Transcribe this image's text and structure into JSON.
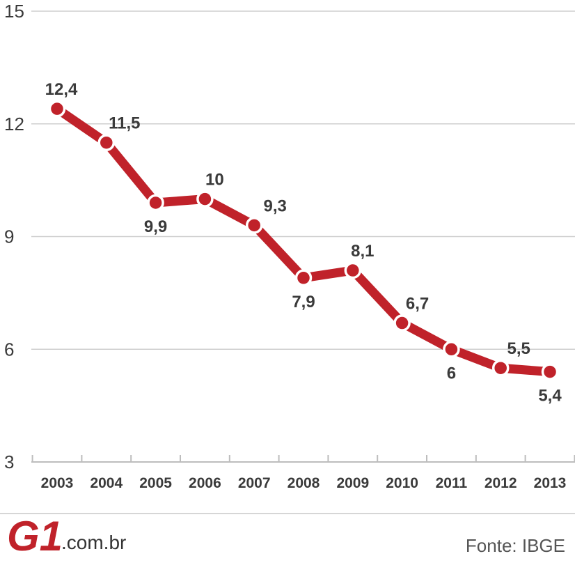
{
  "chart_data": {
    "type": "line",
    "x": [
      "2003",
      "2004",
      "2005",
      "2006",
      "2007",
      "2008",
      "2009",
      "2010",
      "2011",
      "2012",
      "2013"
    ],
    "series": [
      {
        "values": [
          12.4,
          11.5,
          9.9,
          10,
          9.3,
          7.9,
          8.1,
          6.7,
          6,
          5.5,
          5.4
        ]
      }
    ],
    "data_labels": [
      "12,4",
      "11,5",
      "9,9",
      "10",
      "9,3",
      "7,9",
      "8,1",
      "6,7",
      "6",
      "5,5",
      "5,4"
    ],
    "yticks": [
      3,
      6,
      9,
      12,
      15
    ],
    "ylim": [
      3,
      15
    ],
    "grid": true,
    "color": "#c0222a"
  },
  "footer": {
    "logo_text": "G1",
    "domain_text": ".com.br",
    "source_text": "Fonte: IBGE"
  }
}
